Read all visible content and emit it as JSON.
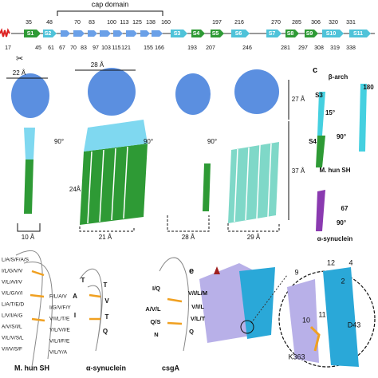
{
  "topology": {
    "cap_label": "cap domain",
    "top_numbers": [
      35,
      48,
      70,
      83,
      100,
      113,
      125,
      138,
      160,
      197,
      216,
      270,
      285,
      306,
      320,
      331
    ],
    "bottom_numbers": [
      17,
      45,
      61,
      67,
      70,
      83,
      97,
      103,
      115,
      121,
      155,
      166,
      193,
      207,
      246,
      281,
      297,
      308,
      319,
      338
    ],
    "strands": [
      "S1",
      "S2",
      "S3",
      "S4",
      "S5",
      "S6",
      "S7",
      "S8",
      "S9",
      "S10",
      "S11"
    ]
  },
  "panel_b": {
    "labels": [
      "22 Å",
      "28 Å",
      "27 Å",
      "37 Å",
      "24Å",
      "10 Å",
      "21 Å",
      "28 Å",
      "29 Å",
      "90°",
      "90°",
      "90°"
    ]
  },
  "panel_c": {
    "letter": "c",
    "labels": [
      "β-arch",
      "S3",
      "S4",
      "180",
      "15°",
      "90°",
      "M. hun SH",
      "67",
      "90°",
      "α-synuclein"
    ]
  },
  "panel_d": {
    "captions": [
      "M. hun SH",
      "α-synuclein",
      "csgA"
    ],
    "hun_left": [
      "L/A/S/F/A/S",
      "I/L/G/V/V",
      "V/L/A/I/V",
      "V/L/G/V/I",
      "L/A/T/E/D",
      "L/V/I/A/G",
      "A/V/S/I/L",
      "V/L/V/S/L",
      "V/I/V/S/F"
    ],
    "hun_right": [
      "F/L/A/V",
      "I/G/V/F/Y",
      "V/I/L/T/E",
      "Y/L/V/I/E",
      "V/L/I/F/E",
      "V/L/Y/A"
    ],
    "syn_residues": [
      "T",
      "A",
      "I",
      "T",
      "V",
      "T",
      "Q"
    ],
    "csga_left": [
      "I/Q",
      "A/V/L",
      "Q/S",
      "N"
    ],
    "csga_right": [
      "V/I/L/M",
      "V/I/L",
      "V/L/T",
      "Q"
    ]
  },
  "panel_e": {
    "letter": "e",
    "labels": [
      "9",
      "12",
      "4",
      "10",
      "11",
      "2",
      "D43",
      "K363"
    ]
  }
}
